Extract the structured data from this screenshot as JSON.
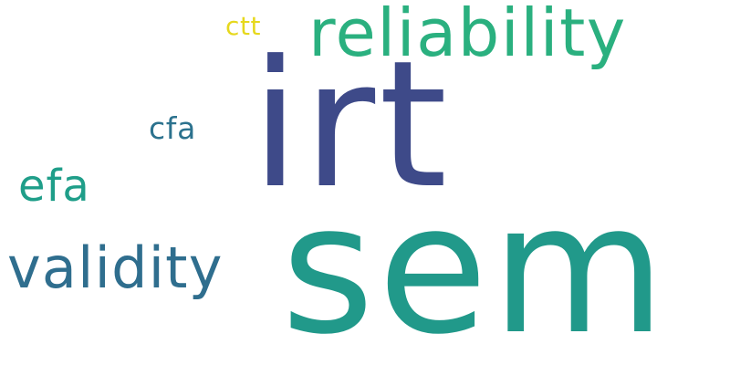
{
  "word_cloud": {
    "words": [
      {
        "text": "sem",
        "color": "#21998a"
      },
      {
        "text": "irt",
        "color": "#3e4a89"
      },
      {
        "text": "reliability",
        "color": "#2ab07f"
      },
      {
        "text": "validity",
        "color": "#2f6e8e"
      },
      {
        "text": "efa",
        "color": "#1f9e89"
      },
      {
        "text": "cfa",
        "color": "#2c728e"
      },
      {
        "text": "ctt",
        "color": "#e6d81d"
      }
    ]
  }
}
